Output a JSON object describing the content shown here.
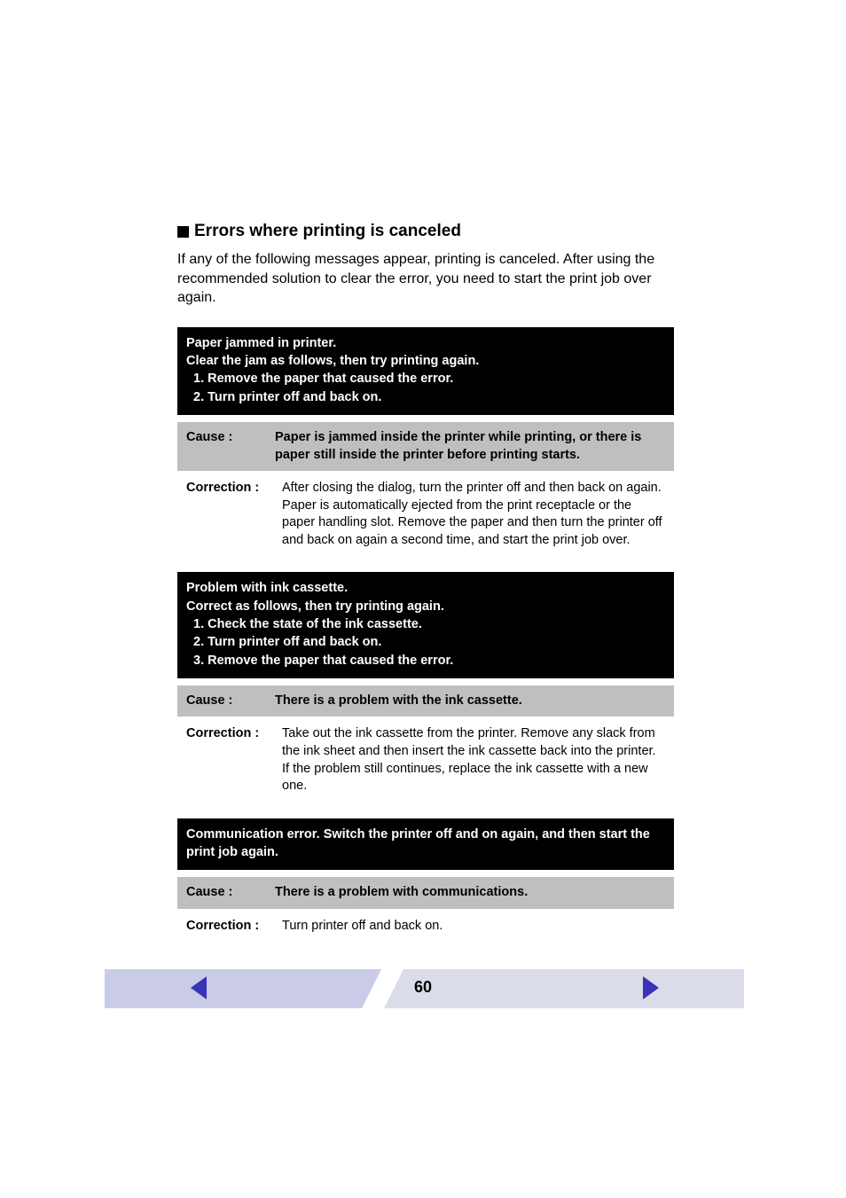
{
  "heading": "Errors where printing is canceled",
  "intro": "If any of the following messages appear, printing is canceled. After using the recommended solution to clear the error, you need to start the print job over again.",
  "blocks": [
    {
      "header_lines": [
        "Paper jammed in printer.",
        "Clear the jam as follows, then try printing again."
      ],
      "header_steps": [
        "1.  Remove the paper that caused the error.",
        "2.  Turn printer off and back on."
      ],
      "cause_label": "Cause :",
      "cause_text": "Paper is jammed inside the printer while printing, or there is paper still inside the printer before printing starts.",
      "correction_label": "Correction :",
      "correction_text": "After closing the dialog, turn the printer off and then back on again. Paper is automatically ejected from the print receptacle or the paper handling slot. Remove the paper and then turn the printer off and back on again a second time, and start the print job over."
    },
    {
      "header_lines": [
        "Problem with ink cassette.",
        "Correct as follows, then try printing again."
      ],
      "header_steps": [
        "1.  Check the state of the ink cassette.",
        "2.  Turn printer off and back on.",
        "3.  Remove the paper that caused the error."
      ],
      "cause_label": "Cause :",
      "cause_text": "There is a problem with the ink cassette.",
      "correction_label": "Correction :",
      "correction_text": "Take out the ink cassette from the printer. Remove any slack from the ink sheet and then insert the ink cassette back into the printer. If the problem still continues, replace the ink cassette with a new one."
    },
    {
      "header_lines": [
        "Communication error. Switch the printer off and on again, and then start the print job again."
      ],
      "header_steps": [],
      "cause_label": "Cause :",
      "cause_text": "There is a problem with communications.",
      "correction_label": "Correction :",
      "correction_text": "Turn printer off and back on."
    }
  ],
  "page_number": "60",
  "colors": {
    "black": "#000000",
    "gray": "#bfbfbf",
    "footer_left": "#c9cbe7",
    "footer_right": "#dadce9",
    "arrow": "#3933b9"
  }
}
